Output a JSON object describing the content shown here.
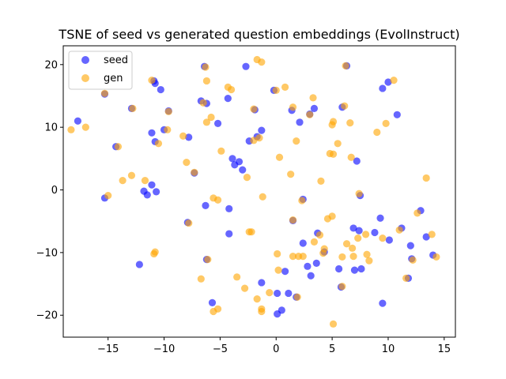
{
  "chart_data": {
    "type": "scatter",
    "title": "TSNE of seed vs generated question embeddings (EvolInstruct)",
    "xlabel": "",
    "ylabel": "",
    "xlim": [
      -19,
      16
    ],
    "ylim": [
      -23.5,
      23
    ],
    "xticks": [
      -15,
      -10,
      -5,
      0,
      5,
      10,
      15
    ],
    "yticks": [
      -20,
      -10,
      0,
      10,
      20
    ],
    "grid": false,
    "legend": "top-left",
    "series": [
      {
        "name": "seed",
        "color": "#0000ff",
        "alpha": 0.6,
        "points": [
          [
            -17.7,
            11.0
          ],
          [
            -15.3,
            -1.3
          ],
          [
            -15.3,
            15.3
          ],
          [
            -14.3,
            6.9
          ],
          [
            -12.9,
            13.0
          ],
          [
            -12.2,
            -11.9
          ],
          [
            -11.8,
            -0.2
          ],
          [
            -11.5,
            -0.8
          ],
          [
            -11.1,
            0.8
          ],
          [
            -11.1,
            9.1
          ],
          [
            -10.9,
            17.4
          ],
          [
            -10.8,
            17.0
          ],
          [
            -10.8,
            7.7
          ],
          [
            -10.7,
            -0.3
          ],
          [
            -10.3,
            16.0
          ],
          [
            -10.0,
            9.6
          ],
          [
            -9.6,
            12.6
          ],
          [
            -7.9,
            -5.2
          ],
          [
            -7.8,
            8.4
          ],
          [
            -7.3,
            2.7
          ],
          [
            -6.7,
            14.2
          ],
          [
            -6.4,
            19.7
          ],
          [
            -6.3,
            -2.5
          ],
          [
            -6.2,
            13.8
          ],
          [
            -6.2,
            -11.1
          ],
          [
            -5.7,
            -18.0
          ],
          [
            -5.2,
            10.6
          ],
          [
            -4.3,
            14.6
          ],
          [
            -4.2,
            -3.0
          ],
          [
            -4.2,
            -7.0
          ],
          [
            -3.9,
            5.0
          ],
          [
            -3.7,
            4.0
          ],
          [
            -3.3,
            4.5
          ],
          [
            -3.0,
            3.2
          ],
          [
            -2.7,
            19.7
          ],
          [
            -2.4,
            7.8
          ],
          [
            -1.9,
            12.8
          ],
          [
            -1.7,
            8.5
          ],
          [
            -1.3,
            9.5
          ],
          [
            -1.3,
            -14.8
          ],
          [
            -0.2,
            15.9
          ],
          [
            0.1,
            -16.5
          ],
          [
            0.1,
            -19.8
          ],
          [
            0.5,
            -19.2
          ],
          [
            0.8,
            -13.0
          ],
          [
            1.1,
            -16.5
          ],
          [
            1.4,
            12.7
          ],
          [
            1.5,
            -4.9
          ],
          [
            1.8,
            -17.1
          ],
          [
            2.1,
            10.8
          ],
          [
            2.4,
            -1.5
          ],
          [
            2.4,
            -8.5
          ],
          [
            2.8,
            -12.2
          ],
          [
            3.0,
            12.1
          ],
          [
            3.1,
            -13.7
          ],
          [
            3.4,
            13.0
          ],
          [
            3.6,
            -11.7
          ],
          [
            3.7,
            -6.9
          ],
          [
            4.3,
            -9.9
          ],
          [
            5.6,
            -12.6
          ],
          [
            5.8,
            -15.5
          ],
          [
            5.9,
            13.2
          ],
          [
            6.3,
            19.8
          ],
          [
            6.9,
            -6.1
          ],
          [
            7.0,
            -12.8
          ],
          [
            7.2,
            4.6
          ],
          [
            7.4,
            -6.5
          ],
          [
            7.5,
            -0.9
          ],
          [
            7.6,
            -12.6
          ],
          [
            8.8,
            -6.8
          ],
          [
            9.3,
            -4.5
          ],
          [
            9.5,
            -18.1
          ],
          [
            9.5,
            16.2
          ],
          [
            10.0,
            17.2
          ],
          [
            10.1,
            -8.0
          ],
          [
            10.8,
            12.0
          ],
          [
            11.2,
            -6.1
          ],
          [
            11.8,
            -14.1
          ],
          [
            12.0,
            -8.9
          ],
          [
            12.1,
            -11.0
          ],
          [
            12.9,
            -3.3
          ],
          [
            13.4,
            -7.5
          ],
          [
            14.0,
            -10.4
          ]
        ]
      },
      {
        "name": "gen",
        "color": "#ffa500",
        "alpha": 0.6,
        "points": [
          [
            -18.3,
            9.6
          ],
          [
            -17.0,
            10.0
          ],
          [
            -15.0,
            -0.9
          ],
          [
            -15.3,
            15.4
          ],
          [
            -14.1,
            6.9
          ],
          [
            -13.7,
            1.5
          ],
          [
            -12.9,
            2.3
          ],
          [
            -12.8,
            13.0
          ],
          [
            -11.7,
            1.5
          ],
          [
            -11.1,
            17.5
          ],
          [
            -10.9,
            -10.2
          ],
          [
            -10.8,
            -9.9
          ],
          [
            -10.5,
            7.4
          ],
          [
            -9.7,
            9.6
          ],
          [
            -9.6,
            12.5
          ],
          [
            -8.3,
            8.6
          ],
          [
            -8.0,
            4.4
          ],
          [
            -7.8,
            -5.3
          ],
          [
            -7.3,
            2.8
          ],
          [
            -6.7,
            -14.2
          ],
          [
            -6.5,
            13.9
          ],
          [
            -6.3,
            19.6
          ],
          [
            -6.2,
            17.4
          ],
          [
            -6.2,
            10.8
          ],
          [
            -6.1,
            -11.1
          ],
          [
            -5.8,
            11.6
          ],
          [
            -5.6,
            -1.3
          ],
          [
            -5.6,
            -19.4
          ],
          [
            -5.2,
            -1.6
          ],
          [
            -5.2,
            -19.0
          ],
          [
            -4.9,
            6.2
          ],
          [
            -4.3,
            16.4
          ],
          [
            -4.0,
            16.0
          ],
          [
            -3.5,
            -13.9
          ],
          [
            -2.8,
            -15.7
          ],
          [
            -2.6,
            2.0
          ],
          [
            -2.4,
            -6.7
          ],
          [
            -2.2,
            -6.7
          ],
          [
            -2.0,
            12.9
          ],
          [
            -2.0,
            7.9
          ],
          [
            -1.7,
            20.8
          ],
          [
            -1.7,
            -17.4
          ],
          [
            -1.5,
            8.3
          ],
          [
            -1.3,
            20.4
          ],
          [
            -1.3,
            -19.0
          ],
          [
            -1.3,
            -19.4
          ],
          [
            -1.2,
            -1.1
          ],
          [
            -0.6,
            -16.4
          ],
          [
            0.0,
            15.9
          ],
          [
            0.1,
            -10.2
          ],
          [
            0.3,
            5.2
          ],
          [
            0.2,
            -12.8
          ],
          [
            0.8,
            16.4
          ],
          [
            1.3,
            2.5
          ],
          [
            1.5,
            -10.6
          ],
          [
            1.5,
            13.2
          ],
          [
            1.5,
            -4.8
          ],
          [
            1.8,
            7.8
          ],
          [
            1.9,
            -17.1
          ],
          [
            2.0,
            -10.6
          ],
          [
            2.3,
            -1.7
          ],
          [
            2.4,
            -10.6
          ],
          [
            3.0,
            12.0
          ],
          [
            3.3,
            14.7
          ],
          [
            3.4,
            -8.3
          ],
          [
            3.9,
            -7.2
          ],
          [
            4.0,
            1.4
          ],
          [
            4.2,
            -10.1
          ],
          [
            4.3,
            -9.4
          ],
          [
            4.6,
            -4.6
          ],
          [
            4.8,
            5.8
          ],
          [
            5.0,
            10.4
          ],
          [
            5.0,
            -4.2
          ],
          [
            5.1,
            10.9
          ],
          [
            5.1,
            5.7
          ],
          [
            5.1,
            -21.4
          ],
          [
            5.5,
            7.4
          ],
          [
            5.9,
            -15.4
          ],
          [
            5.9,
            -10.7
          ],
          [
            6.1,
            13.4
          ],
          [
            6.2,
            19.8
          ],
          [
            6.3,
            -8.6
          ],
          [
            6.6,
            10.7
          ],
          [
            6.7,
            5.2
          ],
          [
            6.8,
            -9.3
          ],
          [
            6.9,
            -10.6
          ],
          [
            7.3,
            -7.7
          ],
          [
            7.4,
            -0.6
          ],
          [
            8.0,
            -7.1
          ],
          [
            8.1,
            -10.3
          ],
          [
            8.3,
            -11.3
          ],
          [
            9.0,
            9.2
          ],
          [
            9.5,
            -7.7
          ],
          [
            9.8,
            10.6
          ],
          [
            10.5,
            17.5
          ],
          [
            11.0,
            -6.4
          ],
          [
            11.6,
            -14.1
          ],
          [
            12.2,
            -11.2
          ],
          [
            12.6,
            -3.7
          ],
          [
            13.4,
            1.9
          ],
          [
            13.9,
            -7.1
          ],
          [
            14.3,
            -10.7
          ]
        ]
      }
    ]
  }
}
